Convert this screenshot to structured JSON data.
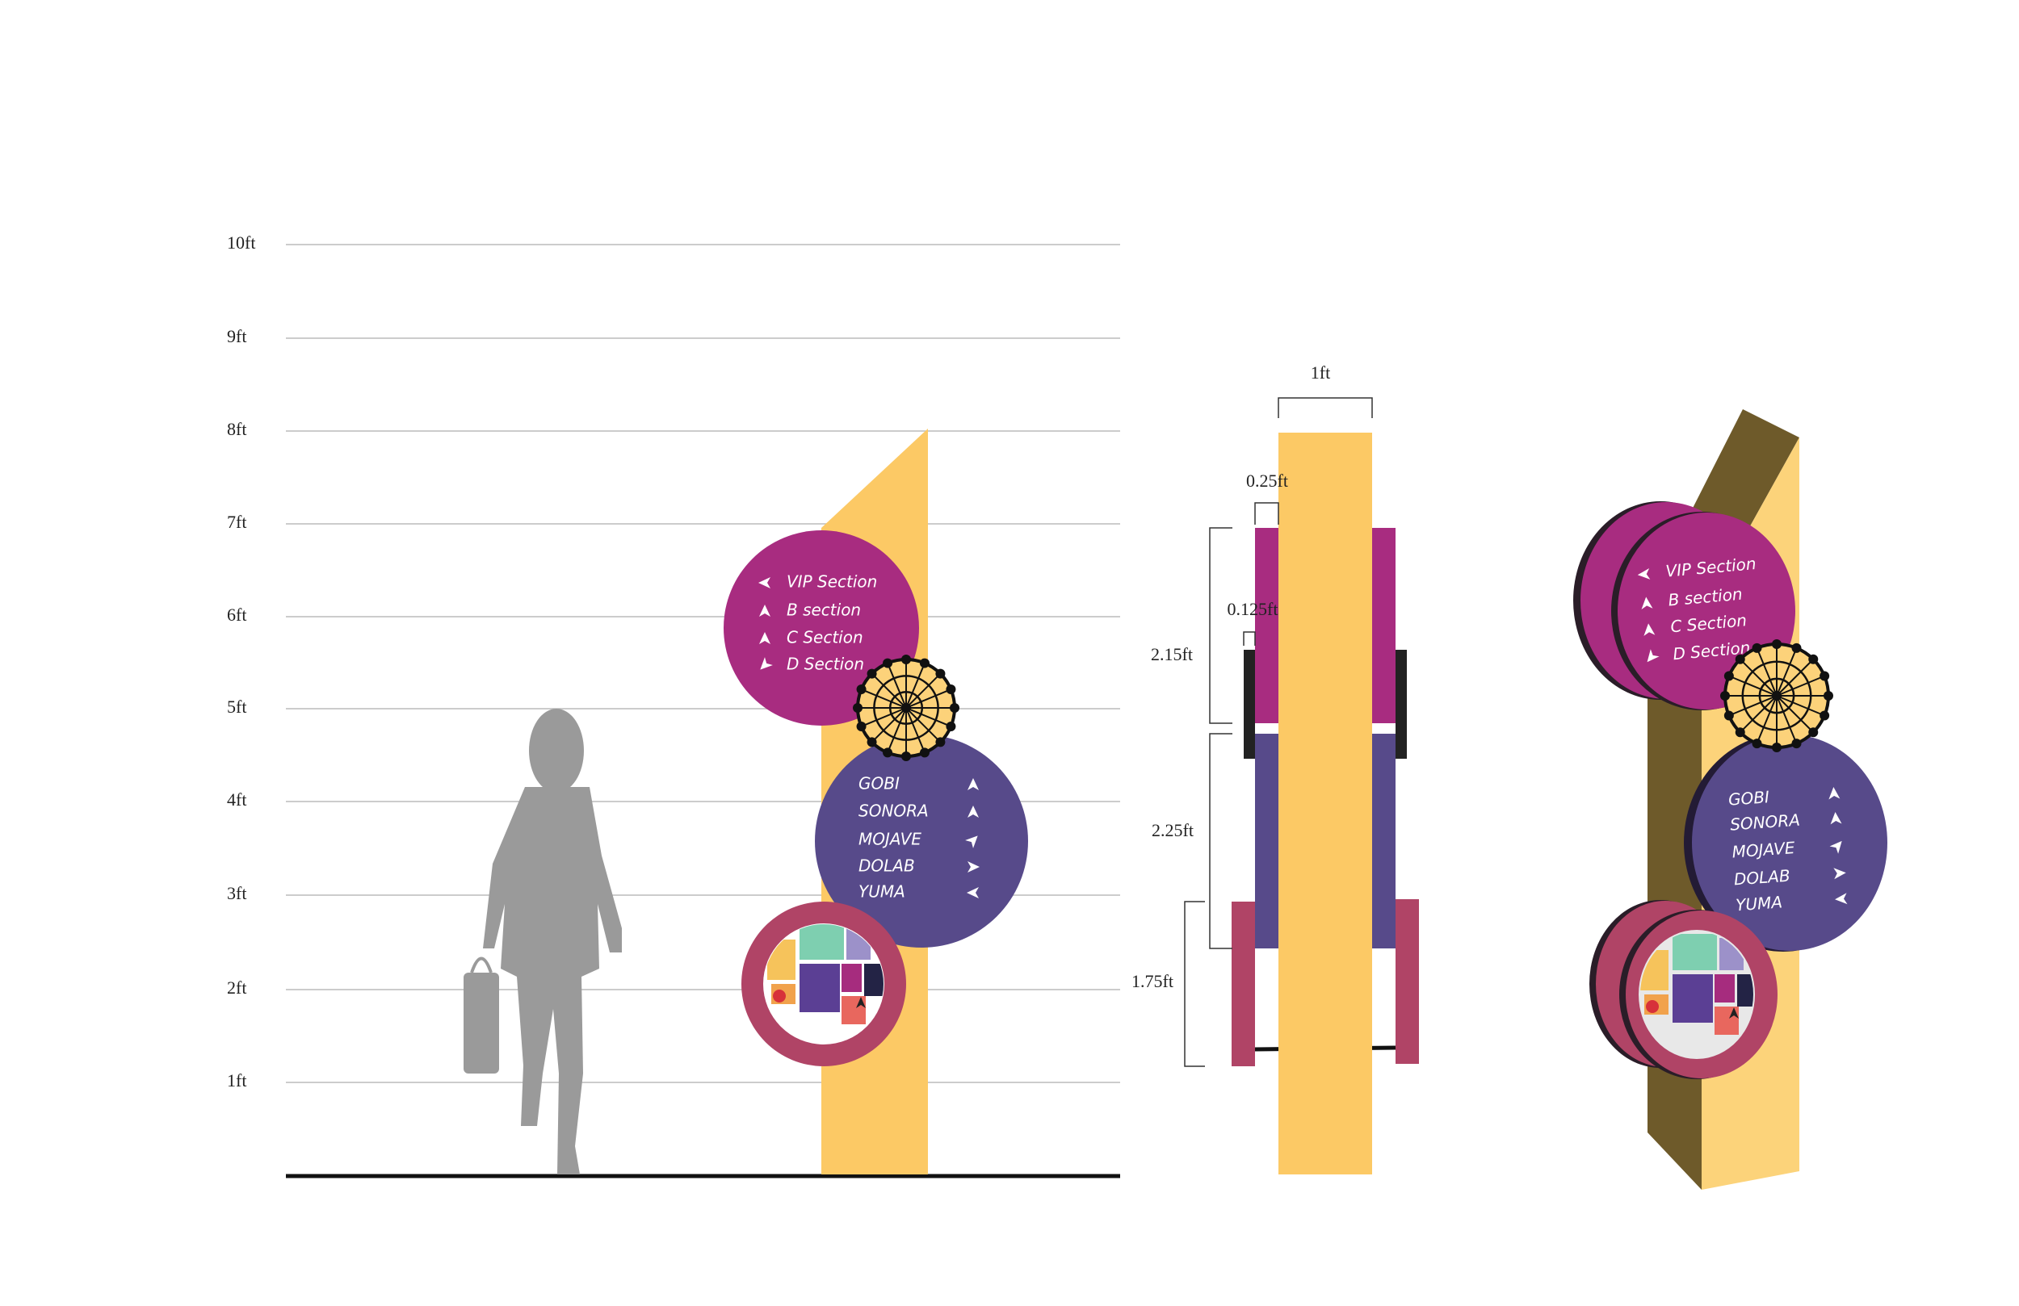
{
  "scale_labels": [
    "10ft",
    "9ft",
    "8ft",
    "7ft",
    "6ft",
    "5ft",
    "4ft",
    "3ft",
    "2ft",
    "1ft"
  ],
  "dimensions": {
    "width": "1ft",
    "panel_offset": "0.25ft",
    "bar_offset": "0.125ft",
    "top_panel": "2.15ft",
    "middle_panel": "2.25ft",
    "bottom_panel": "1.75ft"
  },
  "directional_sign": {
    "sections": [
      "VIP Section",
      "B section",
      "C Section",
      "D Section"
    ],
    "destinations": [
      "GOBI",
      "SONORA",
      "MOJAVE",
      "DOLAB",
      "YUMA"
    ]
  }
}
